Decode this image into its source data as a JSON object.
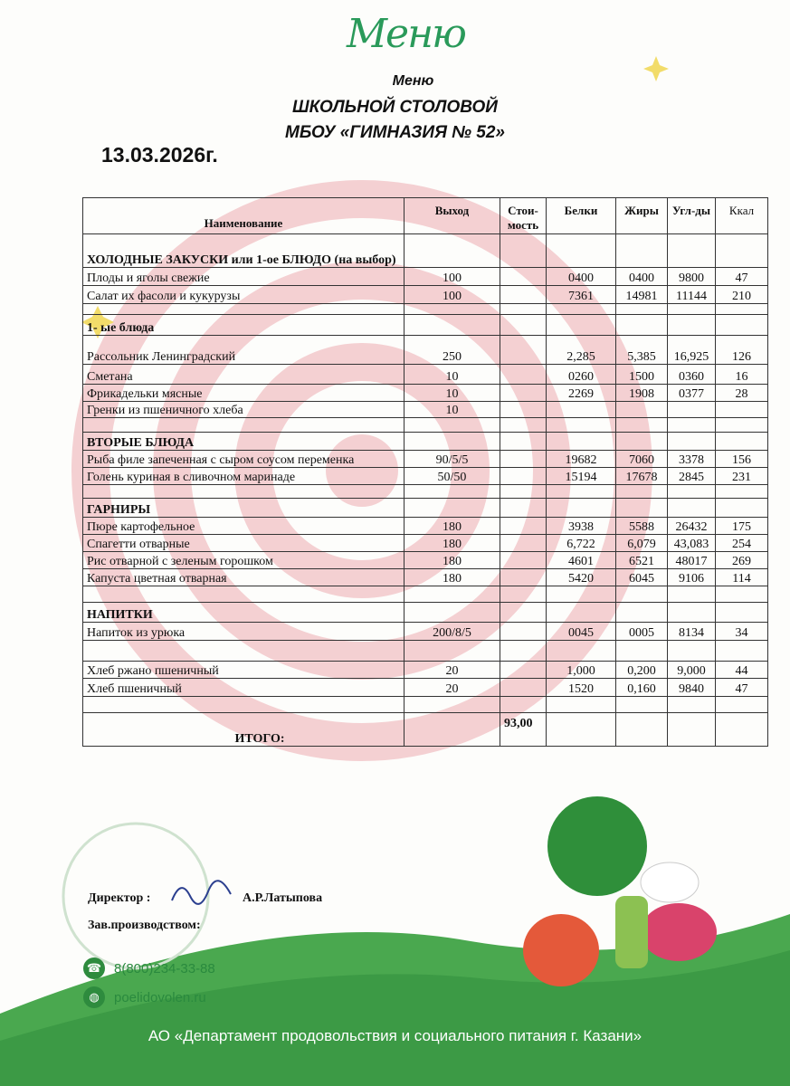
{
  "logo_text": "Меню",
  "title": {
    "line1": "Меню",
    "line2": "ШКОЛЬНОЙ СТОЛОВОЙ",
    "line3": "МБОУ «ГИМНАЗИЯ № 52»"
  },
  "date": "13.03.2026г.",
  "columns": [
    "Наименование",
    "Выход",
    "Стои-мость",
    "Белки",
    "Жиры",
    "Угл-ды",
    "Ккал"
  ],
  "rows": [
    {
      "type": "section",
      "name": "ХОЛОДНЫЕ ЗАКУСКИ или 1-ое БЛЮДО (на выбор)"
    },
    {
      "type": "item",
      "name": "Плоды и яголы свежие",
      "out": "100",
      "cost": "",
      "p": "0400",
      "f": "0400",
      "c": "9800",
      "k": "47"
    },
    {
      "type": "item",
      "name": "Салат их фасоли и кукурузы",
      "out": "100",
      "cost": "",
      "p": "7361",
      "f": "14981",
      "c": "11144",
      "k": "210"
    },
    {
      "type": "empty"
    },
    {
      "type": "section",
      "name": "1-   ые блюда"
    },
    {
      "type": "item",
      "name": "Рассольник Ленинградский",
      "out": "250",
      "cost": "",
      "p": "2,285",
      "f": "5,385",
      "c": "16,925",
      "k": "126"
    },
    {
      "type": "item",
      "name": "Сметана",
      "out": "10",
      "cost": "",
      "p": "0260",
      "f": "1500",
      "c": "0360",
      "k": "16"
    },
    {
      "type": "item",
      "name": "Фрикадельки мясные",
      "out": "10",
      "cost": "",
      "p": "2269",
      "f": "1908",
      "c": "0377",
      "k": "28"
    },
    {
      "type": "item",
      "name": "Гренки из пшеничного хлеба",
      "out": "10",
      "cost": "",
      "p": "",
      "f": "",
      "c": "",
      "k": ""
    },
    {
      "type": "empty"
    },
    {
      "type": "section",
      "name": "ВТОРЫЕ БЛЮДА"
    },
    {
      "type": "item",
      "name": "Рыба филе запеченная с сыром соусом переменка",
      "out": "90/5/5",
      "cost": "",
      "p": "19682",
      "f": "7060",
      "c": "3378",
      "k": "156"
    },
    {
      "type": "item",
      "name": "Голень куриная в сливочном маринаде",
      "out": "50/50",
      "cost": "",
      "p": "15194",
      "f": "17678",
      "c": "2845",
      "k": "231"
    },
    {
      "type": "empty"
    },
    {
      "type": "section",
      "name": "ГАРНИРЫ"
    },
    {
      "type": "item",
      "name": "Пюре картофельное",
      "out": "180",
      "cost": "",
      "p": "3938",
      "f": "5588",
      "c": "26432",
      "k": "175"
    },
    {
      "type": "item",
      "name": "Спагетти отварные",
      "out": "180",
      "cost": "",
      "p": "6,722",
      "f": "6,079",
      "c": "43,083",
      "k": "254"
    },
    {
      "type": "item",
      "name": "Рис отварной с зеленым горошком",
      "out": "180",
      "cost": "",
      "p": "4601",
      "f": "6521",
      "c": "48017",
      "k": "269"
    },
    {
      "type": "item",
      "name": "Капуста цветная отварная",
      "out": "180",
      "cost": "",
      "p": "5420",
      "f": "6045",
      "c": "9106",
      "k": "114"
    },
    {
      "type": "empty"
    },
    {
      "type": "section",
      "name": "НАПИТКИ"
    },
    {
      "type": "item",
      "name": "Напиток из урюка",
      "out": "200/8/5",
      "cost": "",
      "p": "0045",
      "f": "0005",
      "c": "8134",
      "k": "34"
    },
    {
      "type": "empty"
    },
    {
      "type": "item",
      "name": "Хлеб ржано пшеничный",
      "out": "20",
      "cost": "",
      "p": "1,000",
      "f": "0,200",
      "c": "9,000",
      "k": "44"
    },
    {
      "type": "item",
      "name": "Хлеб пшеничный",
      "out": "20",
      "cost": "",
      "p": "1520",
      "f": "0,160",
      "c": "9840",
      "k": "47"
    },
    {
      "type": "empty"
    }
  ],
  "total": {
    "label": "ИТОГО:",
    "cost": "93,00"
  },
  "signatures": {
    "director_label": "Директор :",
    "director_name": "А.Р.Латыпова",
    "deputy_label": "Зав.производством:"
  },
  "contacts": {
    "phone": "8(800)234-33-88",
    "site": "poelidovolen.ru"
  },
  "footer": "АО «Департамент продовольствия и социального питания г. Казани»",
  "colors": {
    "watermark": "#f3c9cc",
    "green": "#3fa34d",
    "text_green": "#2a8a3e"
  }
}
